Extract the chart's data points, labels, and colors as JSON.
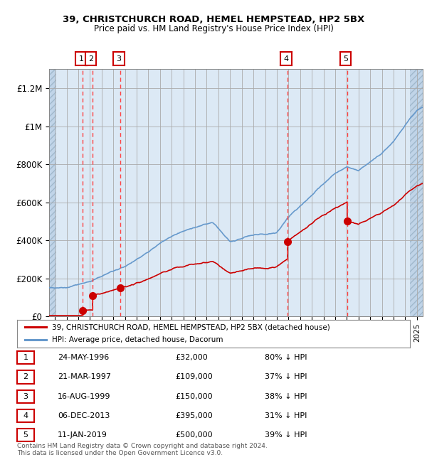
{
  "title_line1": "39, CHRISTCHURCH ROAD, HEMEL HEMPSTEAD, HP2 5BX",
  "title_line2": "Price paid vs. HM Land Registry's House Price Index (HPI)",
  "legend_label_red": "39, CHRISTCHURCH ROAD, HEMEL HEMPSTEAD, HP2 5BX (detached house)",
  "legend_label_blue": "HPI: Average price, detached house, Dacorum",
  "footer": "Contains HM Land Registry data © Crown copyright and database right 2024.\nThis data is licensed under the Open Government Licence v3.0.",
  "transactions": [
    {
      "num": 1,
      "date": "24-MAY-1996",
      "year": 1996.39,
      "price": 32000,
      "pct": "80% ↓ HPI"
    },
    {
      "num": 2,
      "date": "21-MAR-1997",
      "year": 1997.22,
      "price": 109000,
      "pct": "37% ↓ HPI"
    },
    {
      "num": 3,
      "date": "16-AUG-1999",
      "year": 1999.62,
      "price": 150000,
      "pct": "38% ↓ HPI"
    },
    {
      "num": 4,
      "date": "06-DEC-2013",
      "year": 2013.93,
      "price": 395000,
      "pct": "31% ↓ HPI"
    },
    {
      "num": 5,
      "date": "11-JAN-2019",
      "year": 2019.03,
      "price": 500000,
      "pct": "39% ↓ HPI"
    }
  ],
  "xlim": [
    1993.5,
    2025.5
  ],
  "ylim": [
    0,
    1300000
  ],
  "yticks": [
    0,
    200000,
    400000,
    600000,
    800000,
    1000000,
    1200000
  ],
  "ytick_labels": [
    "£0",
    "£200K",
    "£400K",
    "£600K",
    "£800K",
    "£1M",
    "£1.2M"
  ],
  "bg_color_main": "#dce9f5",
  "bg_color_hatch": "#c0d4e8",
  "grid_color": "#aaaaaa",
  "red_line_color": "#cc0000",
  "blue_line_color": "#6699cc",
  "dashed_color": "#ff4444"
}
